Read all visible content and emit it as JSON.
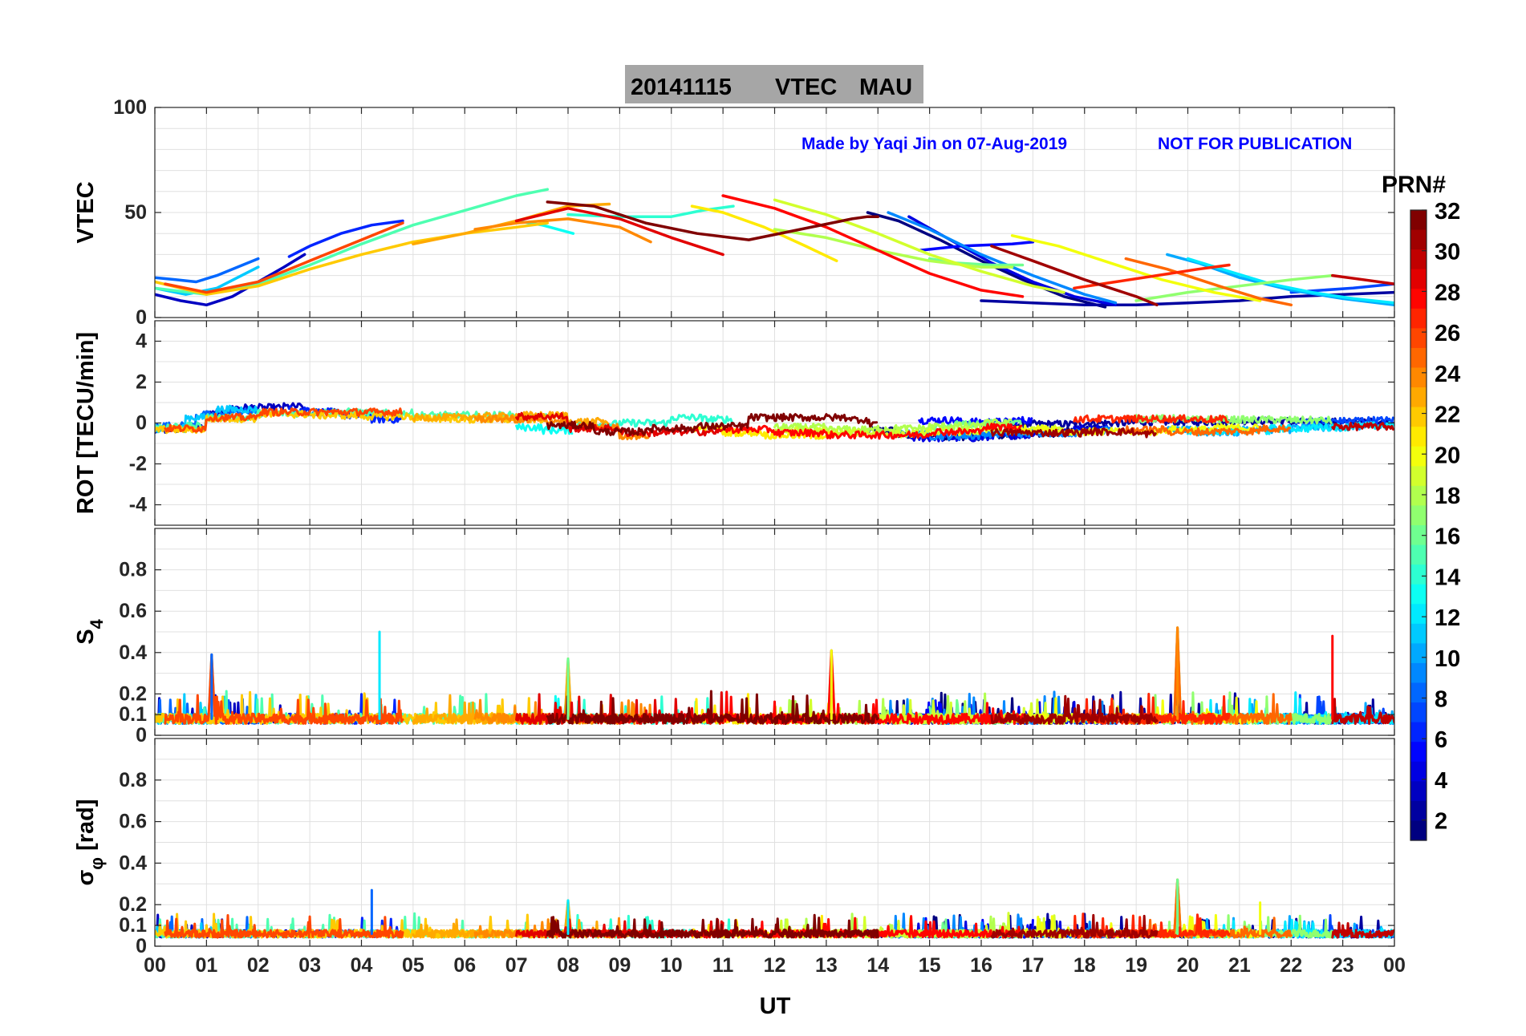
{
  "title": {
    "date": "20141115",
    "quantity": "VTEC",
    "station": "MAU"
  },
  "watermark": {
    "credit": "Made by Yaqi Jin on 07-Aug-2019",
    "notice": "NOT FOR PUBLICATION"
  },
  "colors": {
    "watermark": "#0000ff",
    "title_box": "#a6a6a6"
  },
  "xaxis": {
    "label": "UT",
    "ticks": [
      "00",
      "01",
      "02",
      "03",
      "04",
      "05",
      "06",
      "07",
      "08",
      "09",
      "10",
      "11",
      "12",
      "13",
      "14",
      "15",
      "16",
      "17",
      "18",
      "19",
      "20",
      "21",
      "22",
      "23",
      "00"
    ]
  },
  "colorbar": {
    "label": "PRN#",
    "range": [
      1,
      32
    ],
    "colormap": "jet",
    "ticks": [
      "2",
      "4",
      "6",
      "8",
      "10",
      "12",
      "14",
      "16",
      "18",
      "20",
      "22",
      "24",
      "26",
      "28",
      "30",
      "32"
    ]
  },
  "panels": [
    {
      "id": "vtec",
      "ylabel": "VTEC",
      "ylim": [
        0,
        100
      ],
      "ticks": [
        0,
        50,
        100
      ],
      "tick_labels": [
        "0",
        "50",
        "100"
      ]
    },
    {
      "id": "rot",
      "ylabel": "ROT [TECU/min]",
      "ylim": [
        -5,
        5
      ],
      "ticks": [
        -4,
        -2,
        0,
        2,
        4
      ],
      "tick_labels": [
        "-4",
        "-2",
        "0",
        "2",
        "4"
      ]
    },
    {
      "id": "s4",
      "ylabel": "S",
      "ylabel_sub": "4",
      "ylim": [
        0,
        1
      ],
      "ticks": [
        0,
        0.1,
        0.2,
        0.4,
        0.6,
        0.8
      ],
      "tick_labels": [
        "0",
        "0.1",
        "0.2",
        "0.4",
        "0.6",
        "0.8"
      ]
    },
    {
      "id": "sigphi",
      "ylabel": "σ",
      "ylabel_sub": "φ",
      "ylabel_unit": "[rad]",
      "ylim": [
        0,
        1
      ],
      "ticks": [
        0,
        0.1,
        0.2,
        0.4,
        0.6,
        0.8
      ],
      "tick_labels": [
        "0",
        "0.1",
        "0.2",
        "0.4",
        "0.6",
        "0.8"
      ]
    }
  ],
  "chart_data": {
    "type": "line",
    "title": "20141115    VTEC  MAU",
    "xlabel": "UT",
    "xlim": [
      0,
      24
    ],
    "grid": true,
    "legend": "colorbar-right",
    "vtec_series": [
      {
        "prn": 1,
        "x": [
          13.8,
          14.4,
          15.2,
          16.0,
          16.8,
          17.6,
          18.4
        ],
        "y": [
          50,
          46,
          37,
          27,
          18,
          10,
          5
        ]
      },
      {
        "prn": 2,
        "x": [
          16.0,
          17.0,
          18.0,
          19.0,
          20.0,
          21.0,
          22.0,
          23.0,
          24.0
        ],
        "y": [
          8,
          7,
          6,
          6,
          7,
          8,
          10,
          11,
          12
        ]
      },
      {
        "prn": 3,
        "x": [
          0.0,
          0.5,
          1.0,
          1.5,
          2.0,
          2.5,
          2.9
        ],
        "y": [
          11,
          8,
          6,
          10,
          17,
          24,
          30
        ]
      },
      {
        "prn": 4,
        "x": [
          14.6,
          15.4,
          16.2,
          17.0,
          17.8,
          18.6
        ],
        "y": [
          48,
          37,
          26,
          17,
          10,
          6
        ]
      },
      {
        "prn": 5,
        "x": [
          14.8,
          15.6,
          16.6,
          17.0
        ],
        "y": [
          32,
          34,
          35,
          36
        ]
      },
      {
        "prn": 6,
        "x": [
          2.6,
          3.0,
          3.6,
          4.2,
          4.8
        ],
        "y": [
          29,
          34,
          40,
          44,
          46
        ]
      },
      {
        "prn": 7,
        "x": [
          22.0,
          22.6,
          23.2,
          24.0
        ],
        "y": [
          12,
          13,
          14,
          16
        ]
      },
      {
        "prn": 8,
        "x": [
          0.0,
          0.4,
          0.8,
          1.2,
          1.6,
          2.0
        ],
        "y": [
          19,
          18,
          17,
          20,
          24,
          28
        ]
      },
      {
        "prn": 9,
        "x": [
          14.2,
          15.0,
          16.0,
          17.0,
          18.0,
          18.6
        ],
        "y": [
          50,
          42,
          30,
          20,
          11,
          7
        ]
      },
      {
        "prn": 10,
        "x": [
          19.6,
          20.2,
          21.0,
          22.0,
          23.0,
          24.0
        ],
        "y": [
          30,
          26,
          19,
          13,
          9,
          6
        ]
      },
      {
        "prn": 11,
        "x": [
          0.0,
          0.6,
          1.2,
          1.6,
          2.0
        ],
        "y": [
          14,
          11,
          14,
          19,
          24
        ]
      },
      {
        "prn": 12,
        "x": [
          20.0,
          20.8,
          21.6,
          22.4,
          23.2,
          24.0
        ],
        "y": [
          28,
          22,
          16,
          12,
          9,
          7
        ]
      },
      {
        "prn": 13,
        "x": [
          7.0,
          7.5,
          8.1
        ],
        "y": [
          46,
          44,
          40
        ]
      },
      {
        "prn": 14,
        "x": [
          8.0,
          9.0,
          10.0,
          10.6,
          11.2
        ],
        "y": [
          49,
          48,
          48,
          51,
          53
        ]
      },
      {
        "prn": 15,
        "x": [
          0.0,
          1.0,
          2.0,
          3.0,
          4.0,
          5.0,
          6.0,
          7.0,
          7.6
        ],
        "y": [
          14,
          11,
          16,
          25,
          35,
          44,
          51,
          58,
          61
        ]
      },
      {
        "prn": 16,
        "x": [
          15.0,
          15.5,
          16.2,
          16.8
        ],
        "y": [
          28,
          26,
          25,
          25
        ]
      },
      {
        "prn": 17,
        "x": [
          19.0,
          20.0,
          21.0,
          22.0,
          22.8
        ],
        "y": [
          8,
          12,
          15,
          18,
          20
        ]
      },
      {
        "prn": 18,
        "x": [
          12.0,
          13.0,
          14.0,
          15.0,
          16.0,
          16.6
        ],
        "y": [
          42,
          38,
          32,
          27,
          24,
          24
        ]
      },
      {
        "prn": 19,
        "x": [
          12.0,
          13.0,
          14.0,
          15.0,
          16.0,
          17.0,
          17.6
        ],
        "y": [
          56,
          49,
          40,
          30,
          22,
          15,
          12
        ]
      },
      {
        "prn": 20,
        "x": [
          16.6,
          17.5,
          18.5,
          19.5,
          20.5,
          21.4
        ],
        "y": [
          39,
          34,
          26,
          18,
          12,
          8
        ]
      },
      {
        "prn": 21,
        "x": [
          10.4,
          11.0,
          11.8,
          12.6,
          13.2
        ],
        "y": [
          53,
          50,
          43,
          34,
          27
        ]
      },
      {
        "prn": 22,
        "x": [
          0.0,
          1.0,
          2.0,
          3.0,
          4.0,
          5.0,
          6.0,
          7.0,
          7.6
        ],
        "y": [
          17,
          11,
          15,
          23,
          30,
          36,
          40,
          43,
          45
        ]
      },
      {
        "prn": 23,
        "x": [
          5.0,
          6.0,
          7.0,
          8.0,
          8.8
        ],
        "y": [
          35,
          40,
          46,
          53,
          54
        ]
      },
      {
        "prn": 24,
        "x": [
          6.2,
          7.0,
          8.0,
          9.0,
          9.6
        ],
        "y": [
          42,
          45,
          47,
          43,
          36
        ]
      },
      {
        "prn": 25,
        "x": [
          18.8,
          19.6,
          20.6,
          21.4,
          22.0
        ],
        "y": [
          28,
          23,
          15,
          9,
          6
        ]
      },
      {
        "prn": 26,
        "x": [
          0.2,
          1.0,
          2.0,
          3.0,
          4.0,
          4.8
        ],
        "y": [
          16,
          12,
          17,
          27,
          37,
          45
        ]
      },
      {
        "prn": 27,
        "x": [
          17.8,
          18.6,
          19.4,
          20.2,
          20.8
        ],
        "y": [
          14,
          17,
          20,
          23,
          25
        ]
      },
      {
        "prn": 28,
        "x": [
          11.0,
          12.0,
          13.0,
          14.0,
          15.0,
          16.0,
          16.8
        ],
        "y": [
          58,
          52,
          43,
          32,
          21,
          13,
          10
        ]
      },
      {
        "prn": 29,
        "x": [
          7.0,
          8.0,
          9.0,
          10.0,
          11.0
        ],
        "y": [
          46,
          52,
          47,
          38,
          30
        ]
      },
      {
        "prn": 30,
        "x": [
          22.8,
          23.4,
          24.0
        ],
        "y": [
          20,
          18,
          16
        ]
      },
      {
        "prn": 31,
        "x": [
          16.2,
          17.0,
          18.0,
          19.0,
          19.4
        ],
        "y": [
          34,
          27,
          18,
          10,
          6
        ]
      },
      {
        "prn": 32,
        "x": [
          7.6,
          8.5,
          9.5,
          10.5,
          11.5,
          12.5,
          13.5,
          13.8,
          14.0
        ],
        "y": [
          55,
          53,
          45,
          40,
          37,
          42,
          47,
          48,
          48
        ]
      }
    ],
    "rot": {
      "typical_range": [
        -1.2,
        1.2
      ]
    },
    "s4": {
      "typical_background": 0.08,
      "peaks": [
        {
          "x": 1.1,
          "y": 0.39
        },
        {
          "x": 4.35,
          "y": 0.5
        },
        {
          "x": 8.0,
          "y": 0.37
        },
        {
          "x": 13.1,
          "y": 0.41
        },
        {
          "x": 19.8,
          "y": 0.52
        },
        {
          "x": 22.8,
          "y": 0.48
        }
      ]
    },
    "sigphi": {
      "typical_background": 0.06,
      "peaks": [
        {
          "x": 4.2,
          "y": 0.27
        },
        {
          "x": 8.0,
          "y": 0.22
        },
        {
          "x": 19.8,
          "y": 0.32
        },
        {
          "x": 21.4,
          "y": 0.21
        }
      ]
    }
  }
}
